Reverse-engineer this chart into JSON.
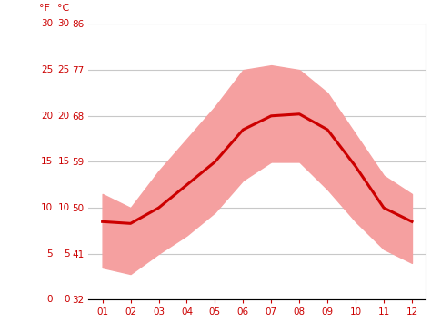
{
  "months": [
    1,
    2,
    3,
    4,
    5,
    6,
    7,
    8,
    9,
    10,
    11,
    12
  ],
  "month_labels": [
    "01",
    "02",
    "03",
    "04",
    "05",
    "06",
    "07",
    "08",
    "09",
    "10",
    "11",
    "12"
  ],
  "mean_temp_c": [
    8.5,
    8.3,
    10.0,
    12.5,
    15.0,
    18.5,
    20.0,
    20.2,
    18.5,
    14.5,
    10.0,
    8.5
  ],
  "max_temp_c": [
    11.5,
    10.0,
    14.0,
    17.5,
    21.0,
    25.0,
    25.5,
    25.0,
    22.5,
    18.0,
    13.5,
    11.5
  ],
  "min_temp_c": [
    3.5,
    2.8,
    5.0,
    7.0,
    9.5,
    13.0,
    15.0,
    15.0,
    12.0,
    8.5,
    5.5,
    4.0
  ],
  "line_color": "#cc0000",
  "band_color": "#f5a0a0",
  "background_color": "#ffffff",
  "grid_color": "#c8c8c8",
  "tick_color": "#cc0000",
  "yticks_c": [
    0,
    5,
    10,
    15,
    20,
    25,
    30
  ],
  "yticks_f": [
    32,
    41,
    50,
    59,
    68,
    77,
    86
  ],
  "ylim_c": [
    0,
    30
  ],
  "xlim": [
    0.5,
    12.5
  ],
  "header_f": "°F",
  "header_c": "°C"
}
